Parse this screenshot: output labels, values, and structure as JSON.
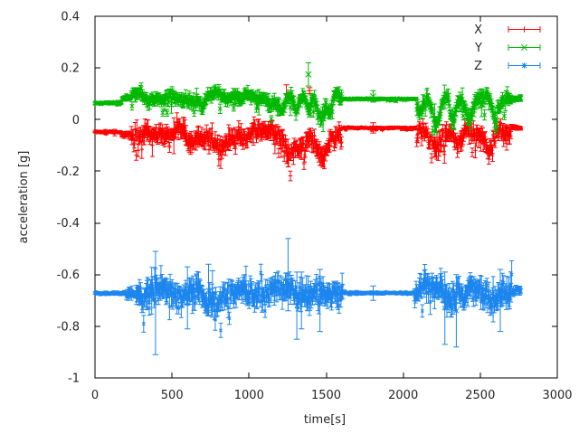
{
  "app": {
    "type": "gnuplot-figure",
    "background": "#ffffff"
  },
  "chart_data": {
    "type": "line-errorbar",
    "title": "",
    "xlabel": "time[s]",
    "ylabel": "acceleration [g]",
    "xlim": [
      0,
      3000
    ],
    "ylim": [
      -1,
      0.4
    ],
    "x_ticks": [
      0,
      500,
      1000,
      1500,
      2000,
      2500,
      3000
    ],
    "x_tick_labels": [
      "0",
      "500",
      "1000",
      "1500",
      "2000",
      "2500",
      "3000"
    ],
    "y_ticks": [
      -1,
      -0.8,
      -0.6,
      -0.4,
      -0.2,
      0,
      0.2,
      0.4
    ],
    "y_tick_labels": [
      "-1",
      "-0.8",
      "-0.6",
      "-0.4",
      "-0.2",
      "0",
      "0.2",
      "0.4"
    ],
    "grid": false,
    "legend_position": "top-right-inside",
    "axis_color": "#000000",
    "text_color": "#262626",
    "t_end": 2765,
    "segments_format": [
      "t_start",
      "t_end",
      "mean_g",
      "noise_amp_g",
      "errbar_g",
      "activity"
    ],
    "dips_format": [
      "t_center",
      "width_s",
      "depth_g"
    ],
    "outliers_format": [
      "t_s",
      "value_g",
      "errbar_g"
    ],
    "series": [
      {
        "name": "X",
        "color": "#ff0000",
        "marker": "plus",
        "skew": -1.6,
        "segments": [
          [
            0,
            170,
            -0.048,
            0.0035,
            0.006,
            0
          ],
          [
            170,
            235,
            -0.052,
            0.012,
            0.012,
            0.3
          ],
          [
            235,
            1600,
            -0.055,
            0.03,
            0.038,
            1
          ],
          [
            1600,
            2085,
            -0.032,
            0.0035,
            0.005,
            0
          ],
          [
            2085,
            2700,
            -0.05,
            0.03,
            0.036,
            1
          ],
          [
            2700,
            2765,
            -0.028,
            0.006,
            0.01,
            0.2
          ]
        ],
        "dips": [
          [
            620,
            40,
            -0.045
          ],
          [
            830,
            50,
            -0.05
          ],
          [
            1265,
            45,
            -0.075
          ],
          [
            1340,
            35,
            -0.06
          ],
          [
            1470,
            50,
            -0.065
          ],
          [
            2210,
            45,
            -0.05
          ],
          [
            2360,
            45,
            -0.055
          ],
          [
            2560,
            40,
            -0.05
          ]
        ],
        "outliers": [
          [
            1242,
            0.1,
            0.035
          ],
          [
            1392,
            0.112,
            0.012
          ],
          [
            1805,
            -0.032,
            0.02
          ]
        ]
      },
      {
        "name": "Y",
        "color": "#00b800",
        "marker": "cross",
        "skew": -1.6,
        "segments": [
          [
            0,
            170,
            0.065,
            0.0035,
            0.006,
            0
          ],
          [
            170,
            235,
            0.078,
            0.01,
            0.012,
            0.3
          ],
          [
            235,
            1600,
            0.088,
            0.022,
            0.028,
            1
          ],
          [
            1600,
            2085,
            0.08,
            0.003,
            0.005,
            0
          ],
          [
            2085,
            2700,
            0.078,
            0.026,
            0.032,
            1
          ],
          [
            2700,
            2765,
            0.082,
            0.008,
            0.012,
            0.2
          ]
        ],
        "dips": [
          [
            700,
            30,
            -0.05
          ],
          [
            1210,
            25,
            -0.06
          ],
          [
            1302,
            20,
            -0.075
          ],
          [
            1388,
            14,
            -0.06
          ],
          [
            1470,
            35,
            -0.095
          ],
          [
            1522,
            18,
            -0.065
          ],
          [
            2100,
            25,
            -0.06
          ],
          [
            2215,
            28,
            -0.09
          ],
          [
            2320,
            22,
            -0.08
          ],
          [
            2430,
            28,
            -0.05
          ],
          [
            2595,
            30,
            -0.09
          ]
        ],
        "outliers": [
          [
            1385,
            0.175,
            0.045
          ],
          [
            1805,
            0.09,
            0.022
          ]
        ]
      },
      {
        "name": "Z",
        "color": "#1c86ee",
        "marker": "star",
        "skew": 0,
        "segments": [
          [
            0,
            200,
            -0.672,
            0.005,
            0.007,
            0
          ],
          [
            200,
            265,
            -0.672,
            0.018,
            0.022,
            0.4
          ],
          [
            265,
            1610,
            -0.672,
            0.042,
            0.05,
            1
          ],
          [
            1610,
            2070,
            -0.671,
            0.004,
            0.006,
            0
          ],
          [
            2070,
            2705,
            -0.67,
            0.042,
            0.05,
            1
          ],
          [
            2705,
            2765,
            -0.665,
            0.012,
            0.02,
            0.3
          ]
        ],
        "dips": [
          [
            760,
            60,
            -0.02
          ],
          [
            1250,
            50,
            0.025
          ],
          [
            2120,
            45,
            0.03
          ],
          [
            2300,
            50,
            -0.03
          ]
        ],
        "outliers": [
          [
            393,
            -0.71,
            0.2
          ],
          [
            600,
            -0.69,
            0.12
          ],
          [
            737,
            -0.66,
            0.1
          ],
          [
            762,
            -0.675,
            0.09
          ],
          [
            1253,
            -0.6,
            0.14
          ],
          [
            1310,
            -0.72,
            0.13
          ],
          [
            1340,
            -0.7,
            0.11
          ],
          [
            1460,
            -0.7,
            0.12
          ],
          [
            1805,
            -0.672,
            0.028
          ],
          [
            2270,
            -0.73,
            0.14
          ],
          [
            2345,
            -0.74,
            0.14
          ],
          [
            2630,
            -0.7,
            0.12
          ]
        ]
      }
    ]
  }
}
